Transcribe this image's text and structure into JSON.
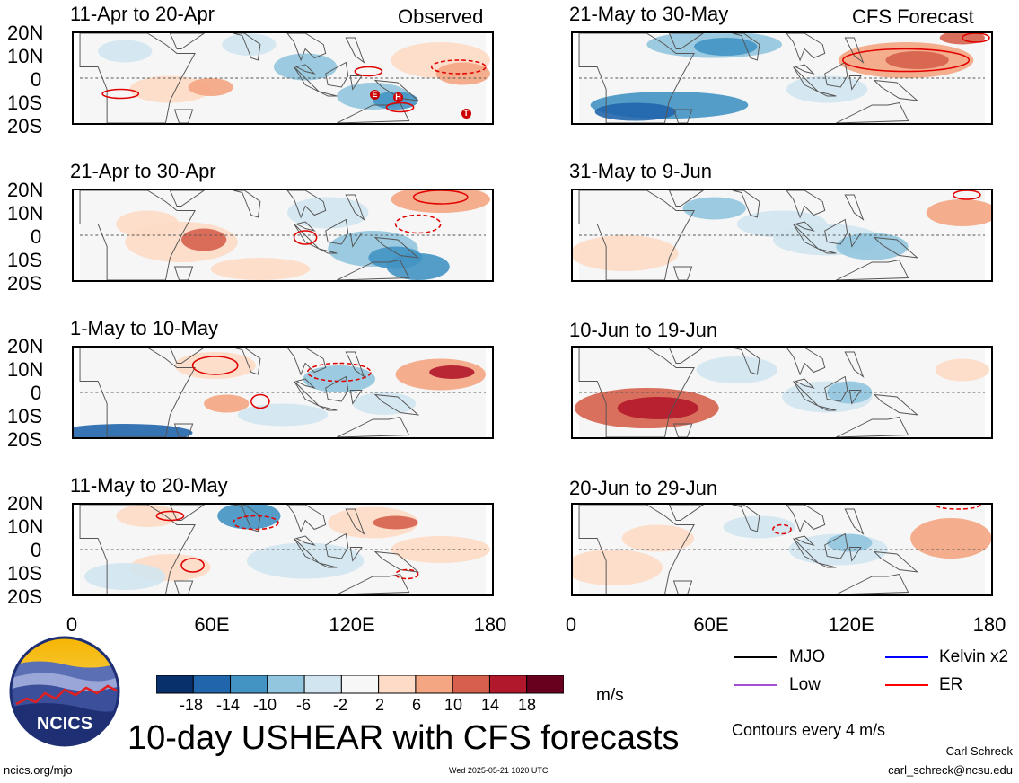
{
  "header": {
    "observed_label": "Observed",
    "forecast_label": "CFS Forecast"
  },
  "latitude_labels": [
    "20N",
    "10N",
    "0",
    "10S",
    "20S"
  ],
  "longitude_labels": [
    "0",
    "60E",
    "120E",
    "180"
  ],
  "panels": [
    {
      "title": "11-Apr to 20-Apr",
      "type": "observed",
      "events": [
        {
          "label": "E",
          "lon": 129,
          "lat": -7
        },
        {
          "label": "H",
          "lon": 139,
          "lat": -8
        },
        {
          "label": "T",
          "lon": 168,
          "lat": -15
        }
      ]
    },
    {
      "title": "21-Apr to 30-Apr",
      "type": "observed"
    },
    {
      "title": "1-May to 10-May",
      "type": "observed"
    },
    {
      "title": "11-May to 20-May",
      "type": "observed"
    },
    {
      "title": "21-May to 30-May",
      "type": "forecast"
    },
    {
      "title": "31-May to 9-Jun",
      "type": "forecast"
    },
    {
      "title": "10-Jun to 19-Jun",
      "type": "forecast"
    },
    {
      "title": "20-Jun to 29-Jun",
      "type": "forecast"
    }
  ],
  "colorbar": {
    "labels": [
      "-18",
      "-14",
      "-10",
      "-6",
      "-2",
      "2",
      "6",
      "10",
      "14",
      "18"
    ],
    "colors": [
      "#08306b",
      "#2166ac",
      "#4393c3",
      "#92c5de",
      "#d1e5f0",
      "#f7f7f7",
      "#fddbc7",
      "#f4a582",
      "#d6604d",
      "#b2182b",
      "#67001f"
    ],
    "units": "m/s"
  },
  "legend": {
    "items": [
      {
        "label": "MJO",
        "color": "#000000"
      },
      {
        "label": "Kelvin x2",
        "color": "#0000ff"
      },
      {
        "label": "Low",
        "color": "#a050d0"
      },
      {
        "label": "ER",
        "color": "#ff0000"
      }
    ],
    "contours_note": "Contours every 4 m/s"
  },
  "footer": {
    "main_title": "10-day USHEAR with CFS forecasts",
    "logo_text": "NCICS",
    "website": "ncics.org/mjo",
    "timestamp": "Wed 2025-05-21 1020 UTC",
    "author": "Carl Schreck",
    "email": "carl_schreck@ncsu.edu"
  }
}
